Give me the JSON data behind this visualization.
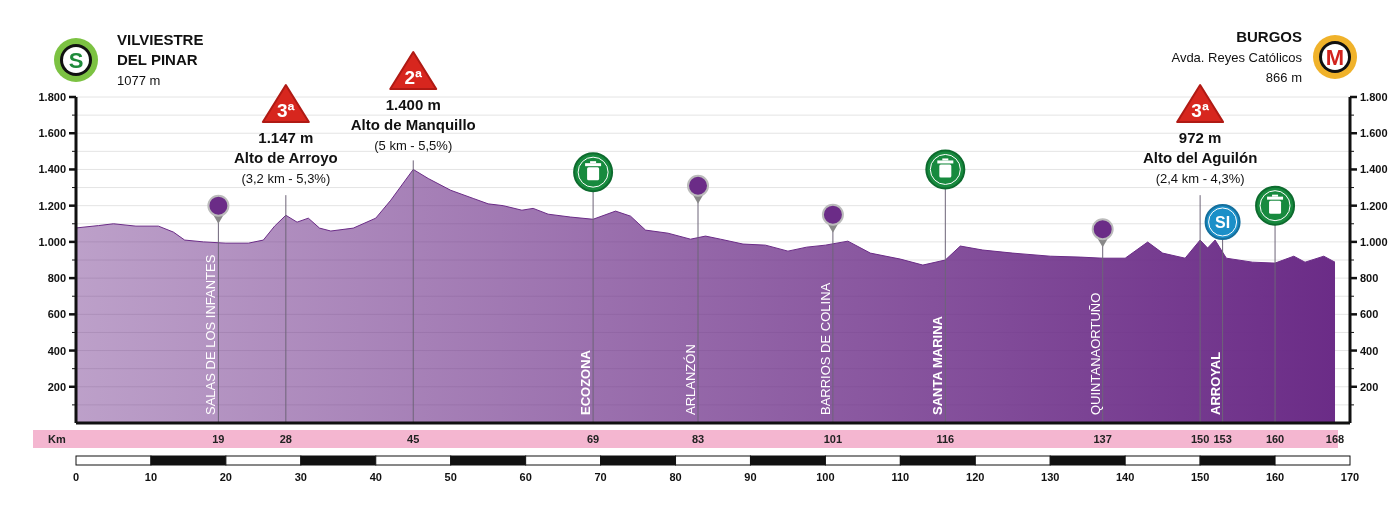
{
  "chart_data": {
    "type": "area",
    "x": [
      0,
      3,
      5,
      8,
      11,
      13,
      14.5,
      17,
      20,
      23,
      25,
      26.5,
      28,
      29.5,
      31,
      32.5,
      34,
      37,
      40,
      42,
      45,
      47,
      50,
      53,
      55,
      57,
      59.5,
      61,
      63,
      66,
      69,
      72,
      74,
      76,
      79,
      82,
      84,
      86,
      89,
      92,
      95,
      97.5,
      100,
      103,
      106,
      110,
      113,
      116,
      118,
      121,
      125,
      130,
      134,
      137,
      140,
      143,
      145,
      148,
      150,
      151,
      152,
      153.5,
      157,
      160,
      162.5,
      164,
      166.5,
      168
    ],
    "series": [
      {
        "color": "#6b2c87",
        "values": [
          1077,
          1090,
          1100,
          1087,
          1087,
          1054,
          1010,
          1000,
          993,
          993,
          1010,
          1087,
          1147,
          1109,
          1131,
          1076,
          1060,
          1076,
          1131,
          1230,
          1400,
          1350,
          1285,
          1240,
          1210,
          1200,
          1175,
          1185,
          1153,
          1137,
          1125,
          1170,
          1142,
          1065,
          1048,
          1015,
          1032,
          1015,
          988,
          982,
          949,
          971,
          982,
          1004,
          938,
          905,
          872,
          900,
          977,
          955,
          938,
          921,
          916,
          910,
          910,
          999,
          938,
          910,
          1010,
          966,
          1010,
          910,
          888,
          883,
          921,
          888,
          921,
          888
        ]
      }
    ],
    "xlim": [
      0,
      170
    ],
    "xticks": [
      0,
      10,
      20,
      30,
      40,
      50,
      60,
      70,
      80,
      90,
      100,
      110,
      120,
      130,
      140,
      150,
      160,
      170
    ],
    "ylim": [
      0,
      1800
    ],
    "yticks": [
      {
        "value": 100,
        "label": null
      },
      {
        "value": 200,
        "label": "200"
      },
      {
        "value": 300,
        "label": null
      },
      {
        "value": 400,
        "label": "400"
      },
      {
        "value": 500,
        "label": null
      },
      {
        "value": 600,
        "label": "600"
      },
      {
        "value": 700,
        "label": null
      },
      {
        "value": 800,
        "label": "800"
      },
      {
        "value": 900,
        "label": null
      },
      {
        "value": 1000,
        "label": "1.000"
      },
      {
        "value": 1100,
        "label": null
      },
      {
        "value": 1200,
        "label": "1.200"
      },
      {
        "value": 1300,
        "label": null
      },
      {
        "value": 1400,
        "label": "1.400"
      },
      {
        "value": 1500,
        "label": null
      },
      {
        "value": 1600,
        "label": "1.600"
      },
      {
        "value": 1700,
        "label": null
      },
      {
        "value": 1800,
        "label": "1.800"
      }
    ],
    "y2lim": [
      0,
      1800
    ],
    "y2ticks": [
      {
        "value": 100,
        "label": null
      },
      {
        "value": 200,
        "label": "200"
      },
      {
        "value": 300,
        "label": null
      },
      {
        "value": 400,
        "label": "400"
      },
      {
        "value": 500,
        "label": null
      },
      {
        "value": 600,
        "label": "600"
      },
      {
        "value": 700,
        "label": null
      },
      {
        "value": 800,
        "label": "800"
      },
      {
        "value": 900,
        "label": null
      },
      {
        "value": 1000,
        "label": "1.000"
      },
      {
        "value": 1100,
        "label": null
      },
      {
        "value": 1200,
        "label": "1.200"
      },
      {
        "value": 1300,
        "label": null
      },
      {
        "value": 1400,
        "label": "1.400"
      },
      {
        "value": 1500,
        "label": null
      },
      {
        "value": 1600,
        "label": "1.600"
      },
      {
        "value": 1700,
        "label": null
      },
      {
        "value": 1800,
        "label": "1.800"
      }
    ],
    "grid": "y",
    "ref_lines": [
      {
        "axis": "x",
        "value": 19,
        "label": "SALAS DE LOS INFANTES"
      },
      {
        "axis": "x",
        "value": 28
      },
      {
        "axis": "x",
        "value": 45
      },
      {
        "axis": "x",
        "value": 69,
        "label": "ECOZONA"
      },
      {
        "axis": "x",
        "value": 83,
        "label": "ARLANZÓN"
      },
      {
        "axis": "x",
        "value": 101,
        "label": "BARRIOS DE COLINA"
      },
      {
        "axis": "x",
        "value": 116,
        "label": "SANTA MARINA"
      },
      {
        "axis": "x",
        "value": 137,
        "label": "QUINTANAORTUÑO"
      },
      {
        "axis": "x",
        "value": 150
      },
      {
        "axis": "x",
        "value": 153,
        "label": "ARROYAL"
      },
      {
        "axis": "x",
        "value": 160
      }
    ],
    "annotations": [
      "S",
      "VILVIESTRE\nDEL PINAR\n1077 m",
      "M",
      "BURGOS\nAvda. Reyes Católicos\n866 m",
      "3ª",
      "1.147 m\nAlto de Arroyo\n(3,2 km - 5,3%)",
      "2ª",
      "1.400 m\nAlto de Manquillo\n(5 km - 5,5%)",
      "3ª",
      "972 m\nAlto del Aguilón\n(2,4 km - 4,3%)",
      "SI",
      "Km",
      "19",
      "28",
      "45",
      "69",
      "83",
      "101",
      "116",
      "137",
      "150",
      "153",
      "160",
      "168"
    ]
  }
}
